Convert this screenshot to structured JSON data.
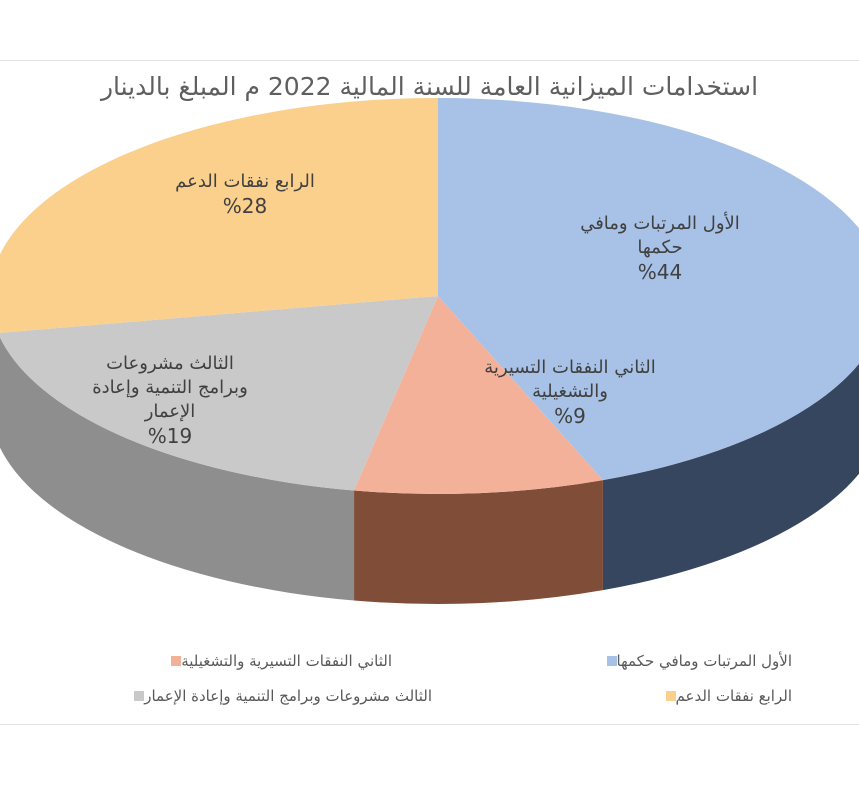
{
  "chart_data": {
    "type": "pie",
    "title": "استخدامات الميزانية العامة للسنة المالية 2022 م  المبلغ بالدينار",
    "slices": [
      {
        "name": "الأول المرتبات ومافي حكمها",
        "value": 44,
        "label_lines": [
          "الأول المرتبات ومافي",
          "حكمها"
        ],
        "value_label": "%44",
        "color": "#a7c2e6"
      },
      {
        "name": "الثاني  النفقات التسيرية والتشغيلية",
        "value": 9,
        "label_lines": [
          "الثاني  النفقات التسيرية",
          "والتشغيلية"
        ],
        "value_label": "%9",
        "color": "#f4b19a"
      },
      {
        "name": "الثالث   مشروعات وبرامج التنمية وإعادة الإعمار",
        "value": 19,
        "label_lines": [
          "الثالث   مشروعات",
          "وبرامج التنمية وإعادة",
          "الإعمار"
        ],
        "value_label": "%19",
        "color": "#c9c9c9"
      },
      {
        "name": "الرابع نفقات الدعم",
        "value": 28,
        "label_lines": [
          "الرابع نفقات الدعم"
        ],
        "value_label": "%28",
        "color": "#fad08c"
      }
    ],
    "side_colors": [
      "#35465e",
      "#7f4d38",
      "#8e8e8e",
      "#b48c42"
    ],
    "legend_placement": "bottom",
    "style": "3d-pie"
  }
}
